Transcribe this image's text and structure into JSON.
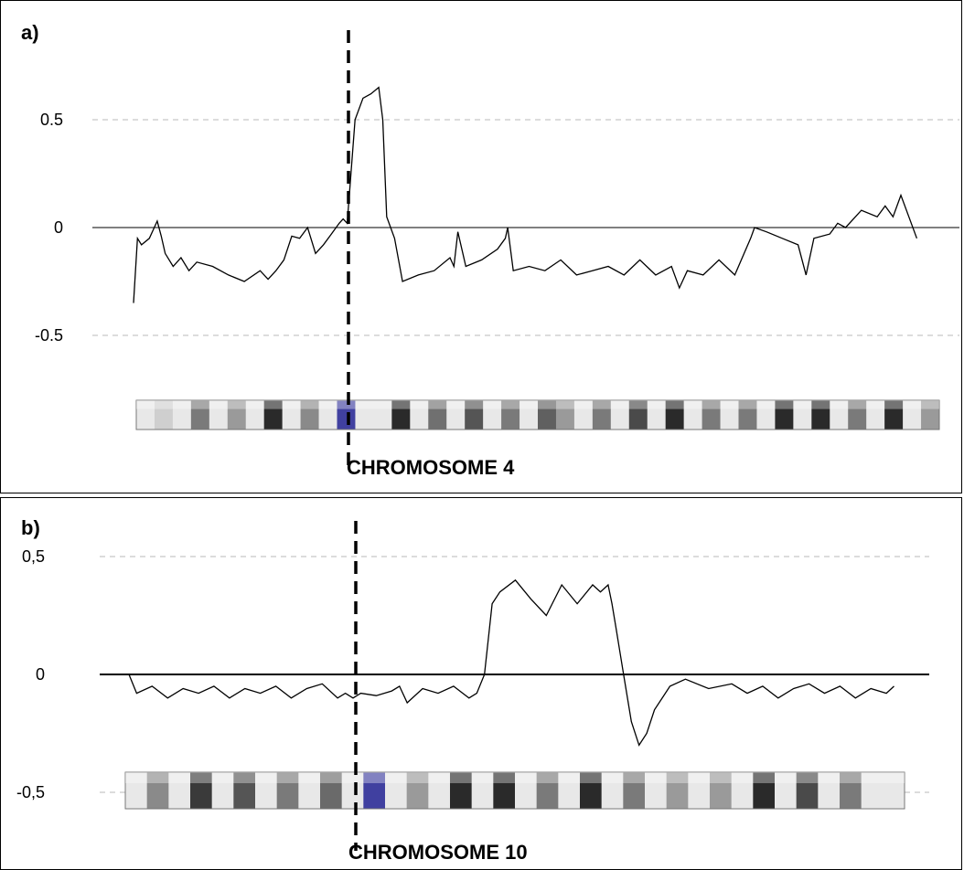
{
  "chart_data": [
    {
      "type": "line",
      "panel_label": "a)",
      "chromosome_label": "CHROMOSOME 4",
      "y_ticks": [
        {
          "value": 0.5,
          "label": "0.5"
        },
        {
          "value": 0,
          "label": "0"
        },
        {
          "value": -0.5,
          "label": "-0.5"
        }
      ],
      "ylim": [
        -0.75,
        1.0
      ],
      "xlim": [
        0,
        100
      ],
      "centromere_x": 27,
      "grid": "dashed lines at ±0.5, solid baseline at 0",
      "series": [
        {
          "x": [
            0,
            0.5,
            1,
            2,
            3,
            3.5,
            4,
            5,
            6,
            7,
            8,
            10,
            12,
            14,
            16,
            17,
            18,
            19,
            20,
            21,
            22,
            23,
            24,
            25,
            26,
            26.5,
            27,
            28,
            29,
            30,
            31,
            31.5,
            32,
            33,
            34,
            36,
            38,
            40,
            40.5,
            41,
            42,
            44,
            46,
            47,
            47.3,
            48,
            50,
            52,
            54,
            56,
            58,
            60,
            62,
            64,
            66,
            68,
            69,
            70,
            72,
            74,
            76,
            78,
            78.5,
            80,
            82,
            84,
            85,
            86,
            88,
            89,
            90,
            92,
            94,
            95,
            96,
            97,
            98,
            99
          ],
          "y": [
            -0.35,
            -0.05,
            -0.08,
            -0.05,
            0.03,
            -0.04,
            -0.12,
            -0.18,
            -0.14,
            -0.2,
            -0.16,
            -0.18,
            -0.22,
            -0.25,
            -0.2,
            -0.24,
            -0.2,
            -0.15,
            -0.04,
            -0.05,
            0.0,
            -0.12,
            -0.08,
            -0.03,
            0.02,
            0.04,
            0.02,
            0.5,
            0.6,
            0.62,
            0.65,
            0.5,
            0.05,
            -0.05,
            -0.25,
            -0.22,
            -0.2,
            -0.14,
            -0.18,
            -0.02,
            -0.18,
            -0.15,
            -0.1,
            -0.05,
            0.0,
            -0.2,
            -0.18,
            -0.2,
            -0.15,
            -0.22,
            -0.2,
            -0.18,
            -0.22,
            -0.15,
            -0.22,
            -0.18,
            -0.28,
            -0.2,
            -0.22,
            -0.15,
            -0.22,
            -0.05,
            0.0,
            -0.02,
            -0.05,
            -0.08,
            -0.22,
            -0.05,
            -0.03,
            0.02,
            0.0,
            0.08,
            0.05,
            0.1,
            0.05,
            0.15,
            0.05,
            -0.05
          ]
        }
      ]
    },
    {
      "type": "line",
      "panel_label": "b)",
      "chromosome_label": "CHROMOSOME 10",
      "y_ticks": [
        {
          "value": 0.5,
          "label": "0,5"
        },
        {
          "value": 0,
          "label": "0"
        },
        {
          "value": -0.5,
          "label": "-0,5"
        }
      ],
      "ylim": [
        -0.65,
        0.65
      ],
      "xlim": [
        0,
        100
      ],
      "centromere_x": 29,
      "grid": "dashed lines at ±0.5, solid baseline at 0",
      "series": [
        {
          "x": [
            0,
            1,
            3,
            5,
            7,
            9,
            11,
            13,
            15,
            17,
            19,
            21,
            23,
            25,
            27,
            28,
            29,
            30,
            32,
            34,
            35,
            36,
            38,
            40,
            42,
            44,
            45,
            46,
            47,
            48,
            50,
            52,
            54,
            56,
            58,
            60,
            61,
            62,
            62.5,
            63,
            63.5,
            64,
            65,
            66,
            67,
            68,
            70,
            72,
            75,
            78,
            80,
            82,
            84,
            86,
            88,
            90,
            92,
            94,
            96,
            98,
            99
          ],
          "y": [
            0.0,
            -0.08,
            -0.05,
            -0.1,
            -0.06,
            -0.08,
            -0.05,
            -0.1,
            -0.06,
            -0.08,
            -0.05,
            -0.1,
            -0.06,
            -0.04,
            -0.1,
            -0.08,
            -0.1,
            -0.08,
            -0.09,
            -0.07,
            -0.05,
            -0.12,
            -0.06,
            -0.08,
            -0.05,
            -0.1,
            -0.08,
            0.0,
            0.3,
            0.35,
            0.4,
            0.32,
            0.25,
            0.38,
            0.3,
            0.38,
            0.35,
            0.38,
            0.3,
            0.2,
            0.1,
            0.0,
            -0.2,
            -0.3,
            -0.25,
            -0.15,
            -0.05,
            -0.02,
            -0.06,
            -0.04,
            -0.08,
            -0.05,
            -0.1,
            -0.06,
            -0.04,
            -0.08,
            -0.05,
            -0.1,
            -0.06,
            -0.08,
            -0.05
          ]
        }
      ]
    }
  ]
}
